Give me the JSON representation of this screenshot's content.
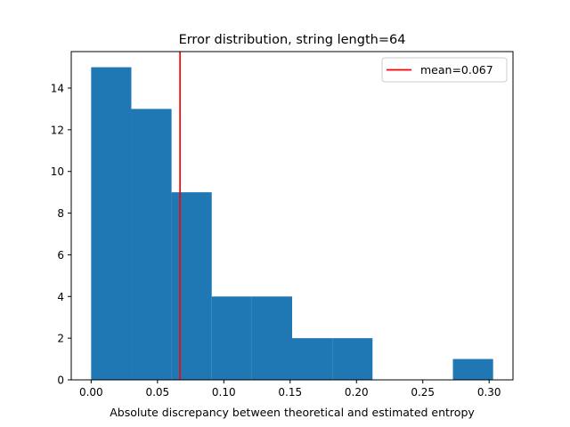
{
  "chart_data": {
    "type": "bar",
    "title": "Error distribution, string length=64",
    "xlabel": "Absolute discrepancy between theoretical and estimated entropy",
    "ylabel": "",
    "xlim": [
      -0.015,
      0.318
    ],
    "ylim": [
      0,
      15.75
    ],
    "bin_edges": [
      0.0,
      0.0303,
      0.0606,
      0.0909,
      0.1212,
      0.1515,
      0.1818,
      0.2121,
      0.2424,
      0.2727,
      0.303
    ],
    "counts": [
      15,
      13,
      9,
      4,
      4,
      2,
      2,
      0,
      0,
      1
    ],
    "bar_color": "#1f77b4",
    "x_ticks": [
      0.0,
      0.05,
      0.1,
      0.15,
      0.2,
      0.25,
      0.3
    ],
    "x_tick_labels": [
      "0.00",
      "0.05",
      "0.10",
      "0.15",
      "0.20",
      "0.25",
      "0.30"
    ],
    "y_ticks": [
      0,
      2,
      4,
      6,
      8,
      10,
      12,
      14
    ],
    "y_tick_labels": [
      "0",
      "2",
      "4",
      "6",
      "8",
      "10",
      "12",
      "14"
    ],
    "mean_line": {
      "value": 0.067,
      "color": "#ff0000",
      "label": "mean=0.067"
    },
    "legend": {
      "placement": "top-right",
      "entries": [
        "mean=0.067"
      ]
    },
    "grid": false
  }
}
